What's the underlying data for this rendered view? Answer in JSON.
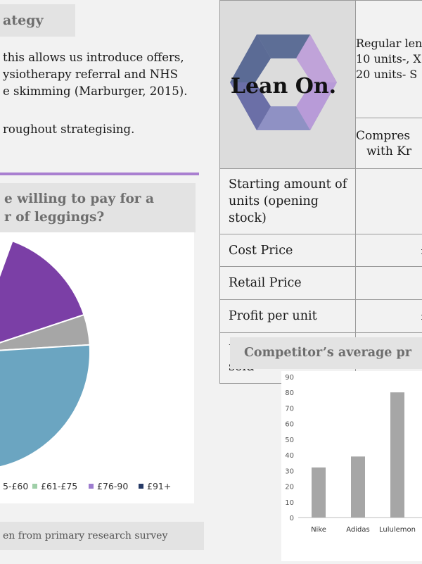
{
  "strategy_heading": "ategy",
  "paragraph_lines": [
    "this allows us introduce offers,",
    "ysiotherapy referral and NHS",
    "e skimming (Marburger, 2015)."
  ],
  "paragraph_last": "roughout strategising.",
  "survey_question": [
    "e willing to pay for a",
    "r of leggings?"
  ],
  "legend": [
    {
      "label": "5-£60",
      "color": "#6ba5c1"
    },
    {
      "label": "£61-£75",
      "color": "#9fcfa8"
    },
    {
      "label": "£76-90",
      "color": "#9d7ccf"
    },
    {
      "label": "£91+",
      "color": "#263a66"
    }
  ],
  "source_note": "en from primary research survey",
  "colors": {
    "purple": "#7b3fa6",
    "grey": "#a6a6a6",
    "blue": "#6ba5c1",
    "accent_line": "#a97fd0"
  },
  "logo_text": "Lean On.",
  "product_headers": {
    "regular": [
      "Regular len",
      "10 units-, X",
      "20 units- S"
    ],
    "compression": [
      "Compres",
      "with Kr"
    ]
  },
  "table_rows": [
    {
      "label": "Starting amount of units (opening stock)",
      "value": ""
    },
    {
      "label": "Cost Price",
      "value": "£"
    },
    {
      "label": "Retail Price",
      "value": ""
    },
    {
      "label": "Profit per unit",
      "value": "£"
    },
    {
      "label": "Units (forecasted) sold",
      "value": ""
    }
  ],
  "competitor_heading": "Competitor’s average pr",
  "chart_data": [
    {
      "type": "pie",
      "title": "",
      "categories": [
        "£76-90",
        "£91+",
        "£61-£75",
        "5-£60"
      ],
      "slice_colors": [
        "#7b3fa6",
        "#a6a6a6",
        "#6ba5c1"
      ],
      "visible_slices": [
        {
          "series_color": "purple",
          "approx_share": 0.19
        },
        {
          "series_color": "grey",
          "approx_share": 0.06
        },
        {
          "series_color": "blue",
          "approx_share": 0.42
        }
      ]
    },
    {
      "type": "bar",
      "title": "",
      "categories": [
        "Nike",
        "Adidas",
        "Lululemon"
      ],
      "values": [
        32,
        39,
        80
      ],
      "ylim": [
        0,
        90
      ],
      "yticks": [
        0,
        10,
        20,
        30,
        40,
        50,
        60,
        70,
        80,
        90
      ],
      "grid": false,
      "bar_color": "#a6a6a6"
    }
  ]
}
